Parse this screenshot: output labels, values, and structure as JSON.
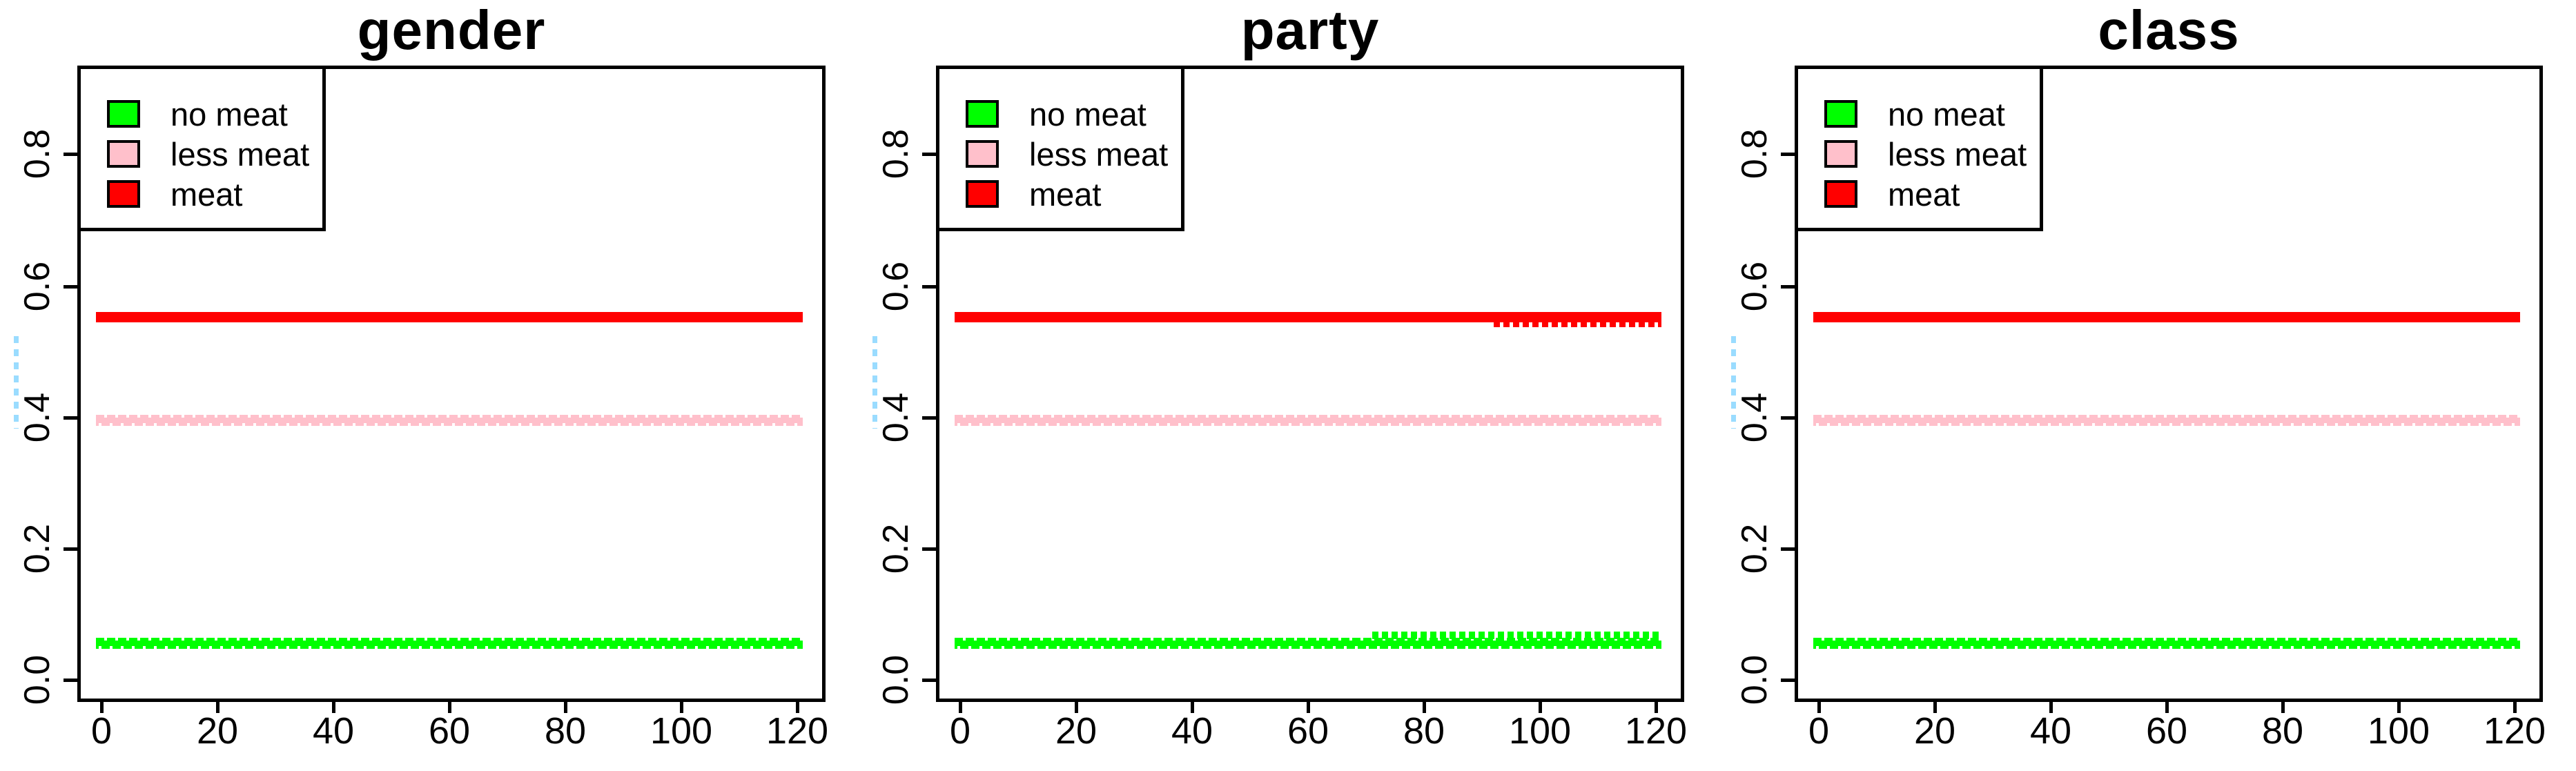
{
  "figure": {
    "background": "#FFFFFF",
    "panel_count": 3,
    "decorations": {
      "left_margin_dashed_mark_color": "#9ADCFF",
      "axis_color": "#000000"
    }
  },
  "panels": [
    {
      "title": "gender"
    },
    {
      "title": "party"
    },
    {
      "title": "class"
    }
  ],
  "legend": {
    "position": "topleft",
    "items": [
      {
        "label": "no meat",
        "color": "#00FF00"
      },
      {
        "label": "less meat",
        "color": "#FFC0CB"
      },
      {
        "label": "meat",
        "color": "#FF0000"
      }
    ]
  },
  "axes": {
    "y": [
      "0.8",
      "0.6",
      "0.4",
      "0.2",
      "0.0"
    ],
    "x": [
      "0",
      "20",
      "40",
      "60",
      "80",
      "100",
      "120"
    ]
  },
  "chart_data": [
    {
      "type": "scatter",
      "title": "gender",
      "xlabel": "",
      "ylabel": "",
      "xlim": [
        0,
        120
      ],
      "ylim": [
        0,
        0.9
      ],
      "x_ticks": [
        0,
        20,
        40,
        60,
        80,
        100,
        120
      ],
      "y_ticks": [
        0.0,
        0.2,
        0.4,
        0.6,
        0.8
      ],
      "grid": false,
      "legend_position": "topleft",
      "series": [
        {
          "name": "no meat",
          "color": "#00FF00",
          "style": "dotted-points",
          "segments": [
            {
              "x": [
                0,
                120
              ],
              "y": 0.055
            }
          ]
        },
        {
          "name": "less meat",
          "color": "#FFC0CB",
          "style": "dotted-points",
          "segments": [
            {
              "x": [
                0,
                120
              ],
              "y": 0.395
            }
          ]
        },
        {
          "name": "meat",
          "color": "#FF0000",
          "style": "thick-solid-points",
          "segments": [
            {
              "x": [
                0,
                120
              ],
              "y": 0.55
            }
          ]
        }
      ]
    },
    {
      "type": "scatter",
      "title": "party",
      "xlabel": "",
      "ylabel": "",
      "xlim": [
        0,
        120
      ],
      "ylim": [
        0,
        0.9
      ],
      "x_ticks": [
        0,
        20,
        40,
        60,
        80,
        100,
        120
      ],
      "y_ticks": [
        0.0,
        0.2,
        0.4,
        0.6,
        0.8
      ],
      "grid": false,
      "legend_position": "topleft",
      "series": [
        {
          "name": "no meat",
          "color": "#00FF00",
          "style": "dotted-points",
          "segments": [
            {
              "x": [
                0,
                120
              ],
              "y": 0.055
            },
            {
              "x": [
                72,
                120
              ],
              "y": 0.059
            }
          ]
        },
        {
          "name": "less meat",
          "color": "#FFC0CB",
          "style": "dotted-points",
          "segments": [
            {
              "x": [
                0,
                120
              ],
              "y": 0.395
            }
          ]
        },
        {
          "name": "meat",
          "color": "#FF0000",
          "style": "thick-solid-points",
          "segments": [
            {
              "x": [
                0,
                120
              ],
              "y": 0.55
            },
            {
              "x": [
                93,
                120
              ],
              "y": 0.546
            }
          ]
        }
      ]
    },
    {
      "type": "scatter",
      "title": "class",
      "xlabel": "",
      "ylabel": "",
      "xlim": [
        0,
        120
      ],
      "ylim": [
        0,
        0.9
      ],
      "x_ticks": [
        0,
        20,
        40,
        60,
        80,
        100,
        120
      ],
      "y_ticks": [
        0.0,
        0.2,
        0.4,
        0.6,
        0.8
      ],
      "grid": false,
      "legend_position": "topleft",
      "series": [
        {
          "name": "no meat",
          "color": "#00FF00",
          "style": "dotted-points",
          "segments": [
            {
              "x": [
                0,
                120
              ],
              "y": 0.055
            }
          ]
        },
        {
          "name": "less meat",
          "color": "#FFC0CB",
          "style": "dotted-points",
          "segments": [
            {
              "x": [
                0,
                120
              ],
              "y": 0.395
            }
          ]
        },
        {
          "name": "meat",
          "color": "#FF0000",
          "style": "thick-solid-points",
          "segments": [
            {
              "x": [
                0,
                120
              ],
              "y": 0.55
            }
          ]
        }
      ]
    }
  ]
}
